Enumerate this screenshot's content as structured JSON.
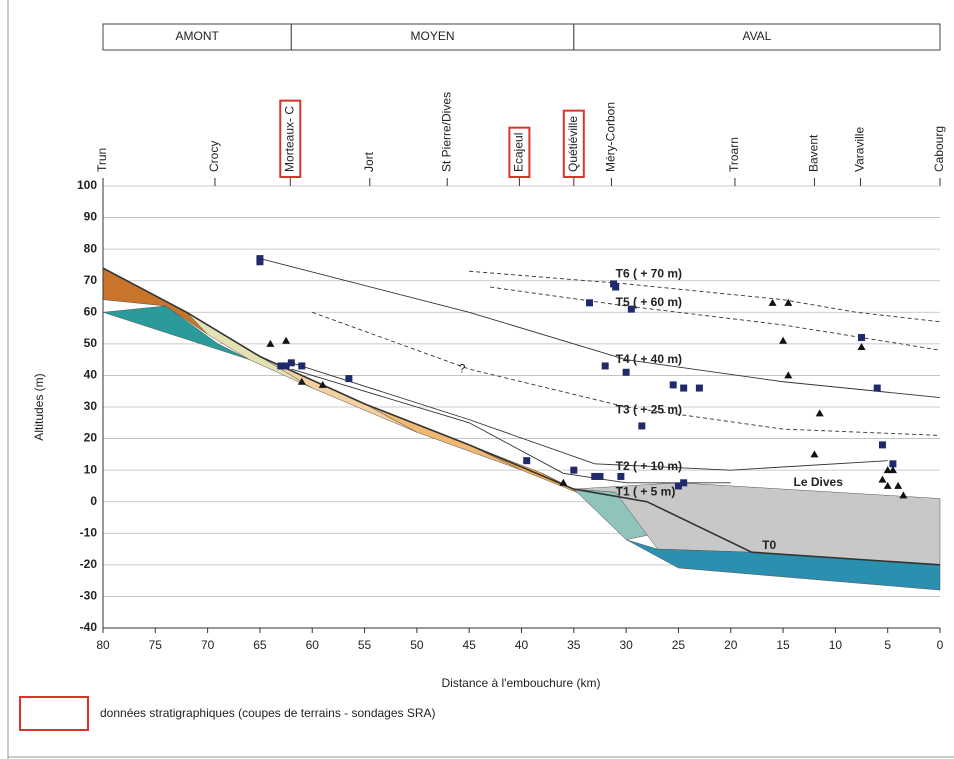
{
  "chart_data": {
    "type": "scatter",
    "ylabel": "Altitudes (m)",
    "xlabel": "Distance à l'embouchure (km)",
    "xlim": [
      80,
      0
    ],
    "ylim": [
      -40,
      100
    ],
    "xticks": [
      80,
      75,
      70,
      65,
      60,
      55,
      50,
      45,
      40,
      35,
      30,
      25,
      20,
      15,
      10,
      5,
      0
    ],
    "yticks": [
      -40,
      -30,
      -20,
      -10,
      0,
      10,
      20,
      30,
      40,
      50,
      60,
      70,
      80,
      90,
      100
    ],
    "grid": true,
    "zones": [
      {
        "label": "AMONT",
        "from": 80,
        "to": 62
      },
      {
        "label": "MOYEN",
        "from": 62,
        "to": 35
      },
      {
        "label": "AVAL",
        "from": 35,
        "to": 0
      }
    ],
    "towns": [
      {
        "name": "Trun",
        "x": 80,
        "boxed": false
      },
      {
        "name": "Crocy",
        "x": 69.3,
        "boxed": false
      },
      {
        "name": "Morteaux- C",
        "x": 62.1,
        "boxed": true
      },
      {
        "name": "Jort",
        "x": 54.5,
        "boxed": false
      },
      {
        "name": "St Pierre/Dives",
        "x": 47.1,
        "boxed": false
      },
      {
        "name": "Ecajeul",
        "x": 40.2,
        "boxed": true
      },
      {
        "name": "Quétiéville",
        "x": 35,
        "boxed": true
      },
      {
        "name": "Méry-Corbon",
        "x": 31.4,
        "boxed": false
      },
      {
        "name": "Troarn",
        "x": 19.6,
        "boxed": false
      },
      {
        "name": "Bavent",
        "x": 12,
        "boxed": false
      },
      {
        "name": "Varaville",
        "x": 7.6,
        "boxed": false
      },
      {
        "name": "Cabourg",
        "x": 0,
        "boxed": false
      }
    ],
    "areas": [
      {
        "color": "#2a9a9a",
        "x": [
          80,
          74,
          69,
          66,
          80
        ],
        "values": [
          60,
          62,
          50,
          45,
          60
        ]
      },
      {
        "color": "#c8742a",
        "x": [
          80,
          72,
          70,
          74,
          80
        ],
        "values": [
          74,
          60,
          53,
          62,
          64
        ]
      },
      {
        "color": "#e4e2b4",
        "x": [
          72,
          65,
          60,
          66,
          70
        ],
        "values": [
          60,
          46,
          36,
          45,
          53
        ]
      },
      {
        "color": "#f4cfa2",
        "x": [
          65,
          55,
          50,
          60
        ],
        "values": [
          46,
          31,
          22,
          36
        ]
      },
      {
        "color": "#f2b872",
        "x": [
          55,
          45,
          40,
          50
        ],
        "values": [
          31,
          18,
          10,
          22
        ]
      },
      {
        "color": "#f3ad4a",
        "x": [
          45,
          38,
          34,
          40
        ],
        "values": [
          18,
          9,
          2,
          10
        ]
      },
      {
        "color": "#f6b820",
        "x": [
          38,
          35,
          30,
          34
        ],
        "values": [
          9,
          4,
          -12,
          2
        ]
      },
      {
        "color": "#8fc4bc",
        "x": [
          35,
          31,
          27,
          30
        ],
        "values": [
          4,
          3,
          -10,
          -12
        ]
      },
      {
        "color": "#c8c8c8",
        "x": [
          35,
          25,
          0,
          0,
          18,
          27,
          31
        ],
        "values": [
          4,
          6,
          1,
          -20,
          -16,
          -15,
          3
        ]
      },
      {
        "color": "#2b8fb0",
        "x": [
          30,
          27,
          18,
          0,
          0,
          25
        ],
        "values": [
          -12,
          -15,
          -16,
          -20,
          -28,
          -21
        ]
      }
    ],
    "lines": [
      {
        "dashed": true,
        "x": [
          45,
          30,
          15,
          8,
          0
        ],
        "values": [
          73,
          69,
          64,
          60,
          57
        ]
      },
      {
        "dashed": true,
        "x": [
          43,
          30,
          15,
          0
        ],
        "values": [
          68,
          62,
          56,
          48
        ]
      },
      {
        "dashed": false,
        "x": [
          65,
          45,
          30,
          15,
          0
        ],
        "values": [
          77,
          60,
          45,
          38,
          33
        ]
      },
      {
        "dashed": true,
        "x": [
          60,
          45,
          30,
          15,
          0
        ],
        "values": [
          60,
          42,
          30,
          23,
          21
        ]
      },
      {
        "dashed": false,
        "x": [
          62,
          45,
          33,
          20,
          5
        ],
        "values": [
          44,
          26,
          12,
          10,
          13
        ]
      },
      {
        "dashed": false,
        "x": [
          62,
          45,
          36,
          30,
          20
        ],
        "values": [
          42,
          25,
          9,
          6,
          6
        ]
      },
      {
        "dashed": false,
        "x": [
          80,
          72,
          65,
          55,
          45,
          35,
          28,
          18,
          0
        ],
        "values": [
          74,
          60,
          46,
          31,
          18,
          4,
          0,
          -16,
          -20
        ]
      }
    ],
    "series": [
      {
        "marker": "square",
        "color": "#1f2a6b",
        "x": [
          65,
          65,
          63,
          62.5,
          62,
          61,
          56.5,
          39.5,
          35,
          33,
          32.5,
          30.5,
          24.5,
          25,
          33.5,
          29.5,
          31,
          31.2,
          32,
          30,
          25.5,
          24.5,
          23,
          28.5,
          7.5,
          6,
          5.5,
          4.5
        ],
        "values": [
          77,
          76,
          43,
          43,
          44,
          43,
          39,
          13,
          10,
          8,
          8,
          8,
          6,
          5,
          63,
          61,
          68,
          69,
          43,
          41,
          37,
          36,
          36,
          24,
          52,
          36,
          18,
          12
        ]
      },
      {
        "marker": "triangle",
        "color": "#111111",
        "x": [
          64,
          62.5,
          61,
          59,
          36,
          16,
          14.5,
          15,
          14.5,
          11.5,
          12,
          7.5,
          5,
          5.5,
          5,
          4,
          3.5,
          4.5
        ],
        "values": [
          50,
          51,
          38,
          37,
          6,
          63,
          63,
          51,
          40,
          28,
          15,
          49,
          10,
          7,
          5,
          5,
          2,
          10
        ]
      }
    ],
    "annotations": [
      {
        "text": "T6 ( + 70 m)",
        "x": 31,
        "y": 72,
        "bold": true
      },
      {
        "text": "T5 ( + 60 m)",
        "x": 31,
        "y": 63,
        "bold": true
      },
      {
        "text": "T4 ( + 40 m)",
        "x": 31,
        "y": 45,
        "bold": true
      },
      {
        "text": "T3 ( + 25 m)",
        "x": 31,
        "y": 29,
        "bold": true
      },
      {
        "text": "T2 ( + 10 m)",
        "x": 31,
        "y": 11,
        "bold": true
      },
      {
        "text": "T1 ( + 5 m)",
        "x": 31,
        "y": 3,
        "bold": true
      },
      {
        "text": "T0",
        "x": 17,
        "y": -14,
        "bold": true
      },
      {
        "text": "Le Dives",
        "x": 14,
        "y": 6,
        "bold": true
      },
      {
        "text": "?",
        "x": 46,
        "y": 42,
        "bold": false
      }
    ],
    "legend": {
      "text": "données stratigraphiques (coupes de terrains - sondages SRA)",
      "color": "#d9342b"
    }
  }
}
